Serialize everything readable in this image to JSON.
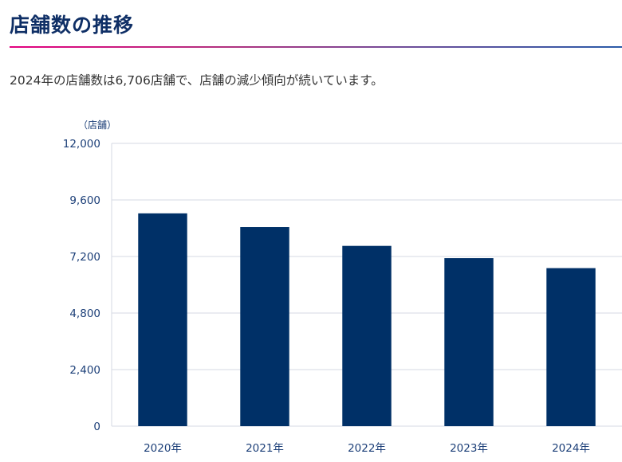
{
  "header": {
    "title": "店舗数の推移",
    "summary": "2024年の店舗数は6,706店舗で、店舗の減少傾向が続いています。"
  },
  "colors": {
    "bar": "#003067",
    "axis_text": "#1c3f78",
    "grid": "#d6dae3"
  },
  "chart_data": {
    "type": "bar",
    "title": "店舗数の推移",
    "unit_label": "（店舗）",
    "xlabel": "",
    "ylabel": "（店舗）",
    "categories": [
      "2020年",
      "2021年",
      "2022年",
      "2023年",
      "2024年"
    ],
    "values": [
      9030,
      8450,
      7650,
      7130,
      6706
    ],
    "ylim": [
      0,
      12000
    ],
    "yticks": [
      0,
      2400,
      4800,
      7200,
      9600,
      12000
    ],
    "ytick_labels": [
      "0",
      "2,400",
      "4,800",
      "7,200",
      "9,600",
      "12,000"
    ],
    "grid": true,
    "legend": "none"
  }
}
